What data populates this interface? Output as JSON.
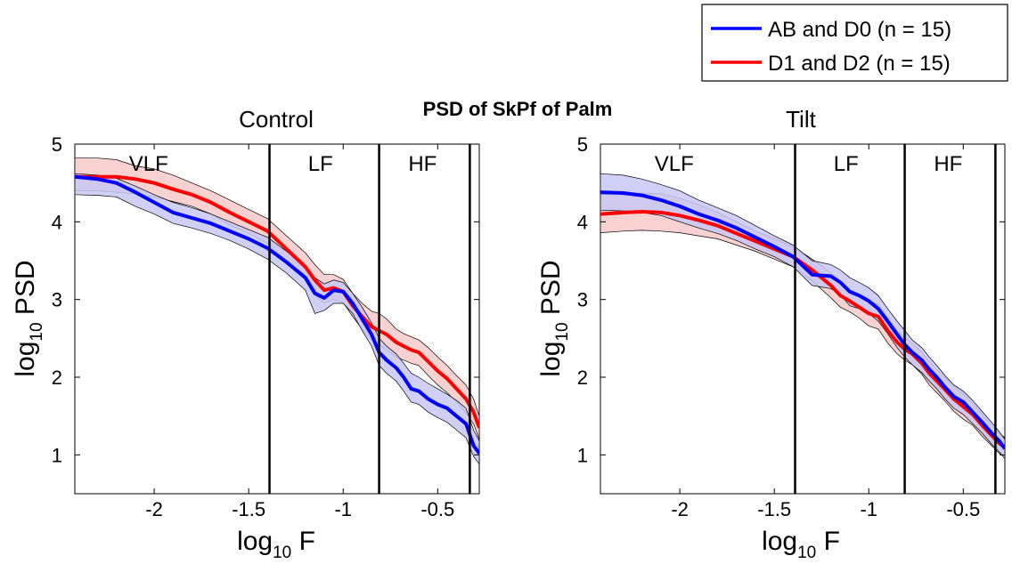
{
  "suptitle": "PSD of SkPf of Palm",
  "legend": {
    "entries": [
      {
        "label": "AB and D0 (n = 15)",
        "color": "#0000ff"
      },
      {
        "label": "D1 and D2 (n = 15)",
        "color": "#ff0000"
      }
    ],
    "placement": "top-right"
  },
  "colors": {
    "blue_line": "#0000ff",
    "red_line": "#ff0000",
    "blue_fill": "#c8c8f5",
    "red_fill": "#f7c9c9",
    "divider": "#000000"
  },
  "chart_data": [
    {
      "type": "line",
      "title": "Control",
      "xlabel": {
        "base": "log",
        "sub": "10",
        "rest": " F"
      },
      "ylabel": {
        "base": "log",
        "sub": "10",
        "rest": " PSD"
      },
      "xlim": [
        -2.42,
        -0.28
      ],
      "ylim": [
        0.5,
        5
      ],
      "xticks": [
        -2,
        -1.5,
        -1,
        -0.5
      ],
      "xtick_labels": [
        "-2",
        "-1.5",
        "-1",
        "-0.5"
      ],
      "yticks": [
        1,
        2,
        3,
        4,
        5
      ],
      "ytick_labels": [
        "1",
        "2",
        "3",
        "4",
        "5"
      ],
      "dividers": [
        -1.39,
        -0.81,
        -0.33
      ],
      "bands": [
        {
          "label": "VLF",
          "x": -2.03
        },
        {
          "label": "LF",
          "x": -1.12
        },
        {
          "label": "HF",
          "x": -0.58
        }
      ],
      "series": [
        {
          "name": "AB and D0 (n = 15)",
          "color": "#0000ff",
          "x": [
            -2.42,
            -2.3,
            -2.2,
            -2.1,
            -2.0,
            -1.9,
            -1.8,
            -1.7,
            -1.6,
            -1.5,
            -1.4,
            -1.3,
            -1.2,
            -1.15,
            -1.1,
            -1.05,
            -1.0,
            -0.95,
            -0.9,
            -0.85,
            -0.81,
            -0.77,
            -0.72,
            -0.68,
            -0.64,
            -0.6,
            -0.55,
            -0.5,
            -0.45,
            -0.4,
            -0.35,
            -0.31,
            -0.28
          ],
          "y": [
            4.58,
            4.55,
            4.5,
            4.38,
            4.25,
            4.12,
            4.05,
            3.98,
            3.88,
            3.78,
            3.66,
            3.48,
            3.28,
            3.08,
            3.02,
            3.12,
            3.1,
            2.95,
            2.75,
            2.55,
            2.32,
            2.22,
            2.12,
            2.0,
            1.85,
            1.82,
            1.72,
            1.65,
            1.6,
            1.5,
            1.4,
            1.12,
            1.02
          ],
          "upper": [
            4.62,
            4.6,
            4.56,
            4.46,
            4.35,
            4.25,
            4.18,
            4.1,
            4.0,
            3.9,
            3.8,
            3.62,
            3.42,
            3.28,
            3.2,
            3.25,
            3.22,
            3.08,
            2.9,
            2.7,
            2.5,
            2.4,
            2.3,
            2.18,
            2.05,
            2.0,
            1.92,
            1.85,
            1.78,
            1.7,
            1.6,
            1.32,
            1.18
          ],
          "lower": [
            4.35,
            4.34,
            4.32,
            4.2,
            4.1,
            3.98,
            3.92,
            3.85,
            3.76,
            3.65,
            3.52,
            3.34,
            3.12,
            2.82,
            2.86,
            2.95,
            2.95,
            2.82,
            2.6,
            2.4,
            2.15,
            2.05,
            1.95,
            1.82,
            1.68,
            1.65,
            1.55,
            1.48,
            1.42,
            1.32,
            1.22,
            0.98,
            0.88
          ]
        },
        {
          "name": "D1 and D2 (n = 15)",
          "color": "#ff0000",
          "x": [
            -2.42,
            -2.3,
            -2.2,
            -2.1,
            -2.0,
            -1.9,
            -1.8,
            -1.7,
            -1.6,
            -1.5,
            -1.4,
            -1.3,
            -1.2,
            -1.15,
            -1.1,
            -1.05,
            -1.0,
            -0.95,
            -0.9,
            -0.85,
            -0.81,
            -0.77,
            -0.72,
            -0.68,
            -0.64,
            -0.6,
            -0.55,
            -0.5,
            -0.45,
            -0.4,
            -0.35,
            -0.31,
            -0.28
          ],
          "y": [
            4.58,
            4.58,
            4.58,
            4.55,
            4.5,
            4.42,
            4.35,
            4.25,
            4.12,
            4.0,
            3.88,
            3.65,
            3.42,
            3.25,
            3.12,
            3.15,
            3.1,
            2.92,
            2.78,
            2.65,
            2.6,
            2.55,
            2.45,
            2.4,
            2.35,
            2.32,
            2.2,
            2.08,
            1.98,
            1.85,
            1.72,
            1.55,
            1.35
          ],
          "upper": [
            4.82,
            4.82,
            4.8,
            4.72,
            4.68,
            4.6,
            4.5,
            4.4,
            4.28,
            4.16,
            4.04,
            3.82,
            3.6,
            3.45,
            3.32,
            3.32,
            3.26,
            3.08,
            2.95,
            2.85,
            2.82,
            2.75,
            2.62,
            2.56,
            2.52,
            2.48,
            2.38,
            2.26,
            2.15,
            2.02,
            1.9,
            1.72,
            1.5
          ],
          "lower": [
            4.4,
            4.4,
            4.38,
            4.36,
            4.32,
            4.26,
            4.2,
            4.1,
            3.96,
            3.85,
            3.72,
            3.5,
            3.26,
            3.06,
            2.95,
            3.0,
            2.96,
            2.78,
            2.62,
            2.48,
            2.42,
            2.35,
            2.26,
            2.22,
            2.18,
            2.15,
            2.02,
            1.9,
            1.8,
            1.68,
            1.54,
            1.4,
            1.2
          ]
        }
      ]
    },
    {
      "type": "line",
      "title": "Tilt",
      "xlabel": {
        "base": "log",
        "sub": "10",
        "rest": " F"
      },
      "ylabel": {
        "base": "log",
        "sub": "10",
        "rest": " PSD"
      },
      "xlim": [
        -2.42,
        -0.28
      ],
      "ylim": [
        0.5,
        5
      ],
      "xticks": [
        -2,
        -1.5,
        -1,
        -0.5
      ],
      "xtick_labels": [
        "-2",
        "-1.5",
        "-1",
        "-0.5"
      ],
      "yticks": [
        1,
        2,
        3,
        4,
        5
      ],
      "ytick_labels": [
        "1",
        "2",
        "3",
        "4",
        "5"
      ],
      "dividers": [
        -1.39,
        -0.81,
        -0.33
      ],
      "bands": [
        {
          "label": "VLF",
          "x": -2.03
        },
        {
          "label": "LF",
          "x": -1.12
        },
        {
          "label": "HF",
          "x": -0.58
        }
      ],
      "series": [
        {
          "name": "AB and D0 (n = 15)",
          "color": "#0000ff",
          "x": [
            -2.42,
            -2.3,
            -2.2,
            -2.1,
            -2.0,
            -1.9,
            -1.8,
            -1.7,
            -1.6,
            -1.5,
            -1.4,
            -1.3,
            -1.2,
            -1.15,
            -1.1,
            -1.05,
            -1.0,
            -0.95,
            -0.9,
            -0.85,
            -0.81,
            -0.77,
            -0.72,
            -0.68,
            -0.64,
            -0.6,
            -0.55,
            -0.5,
            -0.45,
            -0.4,
            -0.35,
            -0.31,
            -0.28
          ],
          "y": [
            4.38,
            4.37,
            4.34,
            4.28,
            4.2,
            4.1,
            4.02,
            3.92,
            3.8,
            3.68,
            3.55,
            3.32,
            3.3,
            3.22,
            3.1,
            3.05,
            2.98,
            2.88,
            2.72,
            2.55,
            2.42,
            2.32,
            2.22,
            2.1,
            2.0,
            1.88,
            1.75,
            1.68,
            1.55,
            1.42,
            1.28,
            1.18,
            1.08
          ],
          "upper": [
            4.62,
            4.6,
            4.55,
            4.48,
            4.4,
            4.28,
            4.18,
            4.08,
            3.95,
            3.82,
            3.7,
            3.5,
            3.45,
            3.38,
            3.28,
            3.22,
            3.15,
            3.05,
            2.88,
            2.72,
            2.6,
            2.48,
            2.38,
            2.26,
            2.15,
            2.03,
            1.9,
            1.82,
            1.7,
            1.56,
            1.42,
            1.3,
            1.2
          ],
          "lower": [
            4.15,
            4.14,
            4.12,
            4.08,
            4.0,
            3.92,
            3.85,
            3.76,
            3.65,
            3.55,
            3.42,
            3.18,
            3.14,
            3.06,
            2.92,
            2.88,
            2.82,
            2.72,
            2.56,
            2.38,
            2.26,
            2.16,
            2.06,
            1.95,
            1.85,
            1.73,
            1.6,
            1.52,
            1.4,
            1.28,
            1.14,
            1.04,
            0.95
          ]
        },
        {
          "name": "D1 and D2 (n = 15)",
          "color": "#ff0000",
          "x": [
            -2.42,
            -2.3,
            -2.2,
            -2.1,
            -2.0,
            -1.9,
            -1.8,
            -1.7,
            -1.6,
            -1.5,
            -1.4,
            -1.3,
            -1.2,
            -1.15,
            -1.1,
            -1.05,
            -1.0,
            -0.95,
            -0.9,
            -0.85,
            -0.81,
            -0.77,
            -0.72,
            -0.68,
            -0.64,
            -0.6,
            -0.55,
            -0.5,
            -0.45,
            -0.4,
            -0.35,
            -0.31,
            -0.28
          ],
          "y": [
            4.1,
            4.12,
            4.13,
            4.12,
            4.08,
            4.02,
            3.95,
            3.85,
            3.75,
            3.65,
            3.55,
            3.38,
            3.18,
            3.05,
            2.98,
            2.9,
            2.82,
            2.78,
            2.6,
            2.45,
            2.36,
            2.3,
            2.18,
            2.05,
            1.95,
            1.85,
            1.72,
            1.62,
            1.52,
            1.38,
            1.25,
            1.15,
            1.1
          ],
          "upper": [
            4.35,
            4.36,
            4.37,
            4.36,
            4.3,
            4.22,
            4.12,
            4.0,
            3.88,
            3.78,
            3.68,
            3.52,
            3.34,
            3.2,
            3.12,
            3.04,
            2.98,
            2.94,
            2.76,
            2.6,
            2.5,
            2.44,
            2.32,
            2.2,
            2.1,
            2.0,
            1.88,
            1.78,
            1.66,
            1.52,
            1.38,
            1.28,
            1.22
          ],
          "lower": [
            3.86,
            3.88,
            3.89,
            3.88,
            3.86,
            3.82,
            3.78,
            3.7,
            3.62,
            3.52,
            3.42,
            3.24,
            3.02,
            2.9,
            2.84,
            2.76,
            2.66,
            2.62,
            2.44,
            2.3,
            2.22,
            2.16,
            2.04,
            1.9,
            1.8,
            1.7,
            1.56,
            1.46,
            1.38,
            1.24,
            1.12,
            1.02,
            0.98
          ]
        }
      ]
    }
  ]
}
